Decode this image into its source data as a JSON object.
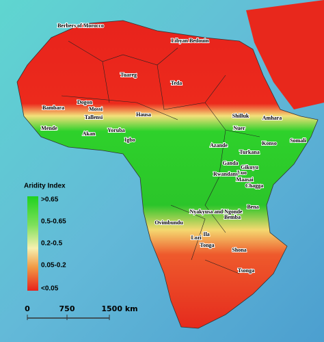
{
  "legend": {
    "title": "Aridity Index",
    "labels": [
      ">0.65",
      "0.5-0.65",
      "0.2-0.5",
      "0.05-0.2",
      "<0.05"
    ]
  },
  "scale_bar": {
    "labels": [
      "0",
      "750",
      "1500 km"
    ]
  },
  "places": [
    "Berbers of Morocco",
    "Libyan Bedouin",
    "Tuareg",
    "Teda",
    "Bambara",
    "Dogon",
    "Mossi",
    "Tallensi",
    "Hausa",
    "Mende",
    "Akan",
    "Yoruba",
    "Igbo",
    "Shilluk",
    "Nuer",
    "Amhara",
    "Azande",
    "Konso",
    "Somali",
    "Turkana",
    "Ganda",
    "Gikuyu",
    "Luo",
    "Rwandans",
    "Maasai",
    "Chagga",
    "Bena",
    "Nyakyusa and Ngonde",
    "Bemba",
    "Ovimbundu",
    "Ila",
    "Lozi",
    "Tonga",
    "Shona",
    "Tsonga"
  ]
}
